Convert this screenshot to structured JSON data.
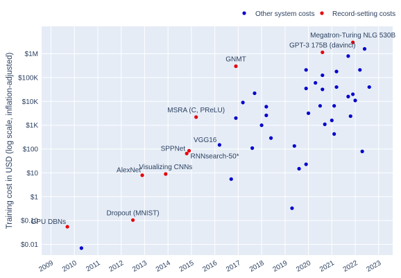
{
  "chart_data": {
    "type": "scatter",
    "ylabel": "Training cost in USD (log scale, inflation-adjusted)",
    "xlabel": "",
    "y_scale": "log",
    "xlim": [
      2008.6,
      2023.6
    ],
    "ylim_log10": [
      -2.45,
      7.15
    ],
    "x_ticks": [
      "2009",
      "2010",
      "2011",
      "2012",
      "2013",
      "2014",
      "2015",
      "2016",
      "2017",
      "2018",
      "2019",
      "2020",
      "2021",
      "2022",
      "2023"
    ],
    "y_ticks": [
      "$0.01",
      "$0.10",
      "$1",
      "$10",
      "$100",
      "$1K",
      "$10K",
      "$100K",
      "$1M"
    ],
    "legend": {
      "position": "top-right",
      "items": [
        "Other system costs",
        "Record-setting costs"
      ]
    },
    "colors": {
      "other": "#0000cc",
      "record": "#e8000b",
      "plot_bg": "#e5ecf6",
      "grid": "#ffffff",
      "text": "#2a3f5f"
    },
    "series": [
      {
        "name": "Other system costs",
        "color": "#0000cc",
        "points": [
          {
            "x": 2010.3,
            "y": 0.007
          },
          {
            "x": 2016.2,
            "y": 150
          },
          {
            "x": 2016.7,
            "y": 5.5
          },
          {
            "x": 2016.9,
            "y": 2000
          },
          {
            "x": 2017.2,
            "y": 9000
          },
          {
            "x": 2017.6,
            "y": 110
          },
          {
            "x": 2017.7,
            "y": 22000
          },
          {
            "x": 2018.0,
            "y": 1000
          },
          {
            "x": 2018.2,
            "y": 6000
          },
          {
            "x": 2018.2,
            "y": 2600
          },
          {
            "x": 2018.4,
            "y": 290
          },
          {
            "x": 2019.3,
            "y": 0.33
          },
          {
            "x": 2019.4,
            "y": 135
          },
          {
            "x": 2019.6,
            "y": 15
          },
          {
            "x": 2019.9,
            "y": 23
          },
          {
            "x": 2019.9,
            "y": 210000
          },
          {
            "x": 2019.9,
            "y": 35000
          },
          {
            "x": 2020.0,
            "y": 3200
          },
          {
            "x": 2020.3,
            "y": 60000
          },
          {
            "x": 2020.5,
            "y": 6500
          },
          {
            "x": 2020.6,
            "y": 125000
          },
          {
            "x": 2020.6,
            "y": 32000
          },
          {
            "x": 2020.7,
            "y": 1100
          },
          {
            "x": 2021.0,
            "y": 1600
          },
          {
            "x": 2021.1,
            "y": 430
          },
          {
            "x": 2021.1,
            "y": 6500
          },
          {
            "x": 2021.2,
            "y": 180000
          },
          {
            "x": 2021.2,
            "y": 40000
          },
          {
            "x": 2021.7,
            "y": 800000
          },
          {
            "x": 2021.7,
            "y": 16000
          },
          {
            "x": 2021.8,
            "y": 2400
          },
          {
            "x": 2021.9,
            "y": 20000
          },
          {
            "x": 2022.0,
            "y": 11000
          },
          {
            "x": 2022.2,
            "y": 210000
          },
          {
            "x": 2022.3,
            "y": 80
          },
          {
            "x": 2022.4,
            "y": 1600000
          },
          {
            "x": 2022.6,
            "y": 40000
          }
        ]
      },
      {
        "name": "Record-setting costs",
        "color": "#e8000b",
        "points": [
          {
            "x": 2009.7,
            "y": 0.055,
            "label": "GPU DBNs",
            "label_anchor": "end"
          },
          {
            "x": 2012.5,
            "y": 0.105,
            "label": "Dropout (MNIST)",
            "label_anchor": "middle"
          },
          {
            "x": 2012.9,
            "y": 8,
            "label": "AlexNet",
            "label_anchor": "end"
          },
          {
            "x": 2013.9,
            "y": 9,
            "label": "Visualizing CNNs",
            "label_anchor": "middle"
          },
          {
            "x": 2014.8,
            "y": 65,
            "label": "SPPNet",
            "label_anchor": "end"
          },
          {
            "x": 2014.9,
            "y": 85,
            "label": "RNNsearch-50*",
            "label_anchor": "start"
          },
          {
            "x": 2015.2,
            "y": 2200,
            "label": "MSRA (C, PReLU)",
            "label_anchor": "middle"
          },
          {
            "x": 2016.9,
            "y": 300000,
            "label": "GNMT",
            "label_anchor": "middle"
          },
          {
            "x": 2020.6,
            "y": 1150000,
            "label": "GPT-3 175B (davinci)",
            "label_anchor": "middle"
          },
          {
            "x": 2021.9,
            "y": 3000000,
            "label": "Megatron-Turing NLG 530B",
            "label_anchor": "middle"
          }
        ]
      }
    ],
    "annotations": {
      "2016.2_150": "VGG16"
    }
  }
}
